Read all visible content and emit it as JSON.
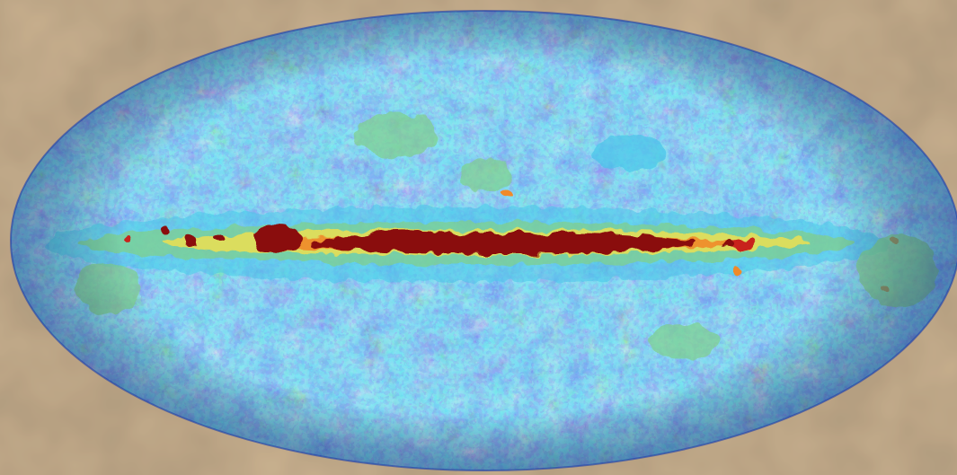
{
  "image": {
    "subject": "all-sky-microwave-map",
    "projection": "mollweide",
    "colors": {
      "background": "#d8c4a6",
      "background_dark": "#c4ab8a",
      "background_light": "#e6d6be",
      "sky_base": "#2d58c4",
      "sky_deep": "#1f3ea6",
      "sky_mid": "#3b8ee3",
      "sky_cyan": "#49c6ea",
      "sky_green": "#7fd08d",
      "sky_yellow": "#e6df55",
      "sky_orange": "#f08a2a",
      "sky_red": "#c8241a",
      "galactic_plane": "#8a0d0a"
    }
  }
}
